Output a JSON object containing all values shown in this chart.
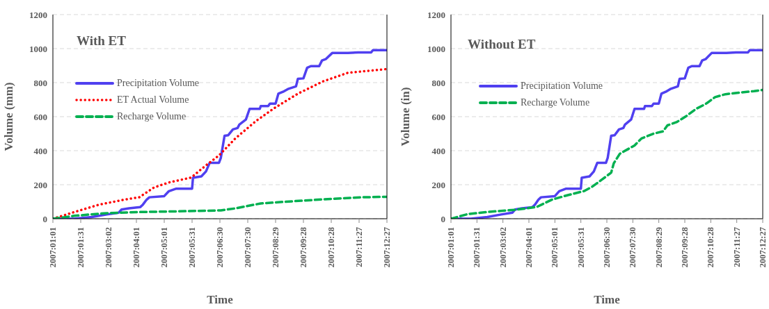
{
  "chart_data": [
    {
      "type": "line",
      "title": "With ET",
      "xlabel": "Time",
      "ylabel": "Volume (mm)",
      "xlim": [
        "2007-01-01",
        "2007-12-27"
      ],
      "xticks": [
        {
          "value": "2007-01-01",
          "label": "2007:01:01"
        },
        {
          "value": "2007-01-31",
          "label": "2007:01:31"
        },
        {
          "value": "2007-03-02",
          "label": "2007:03:02"
        },
        {
          "value": "2007-04-01",
          "label": "2007:04:01"
        },
        {
          "value": "2007-05-01",
          "label": "2007:05:01"
        },
        {
          "value": "2007-05-31",
          "label": "2007:05:31"
        },
        {
          "value": "2007-06-30",
          "label": "2007:06:30"
        },
        {
          "value": "2007-07-30",
          "label": "2007:07:30"
        },
        {
          "value": "2007-08-29",
          "label": "2007:08:29"
        },
        {
          "value": "2007-09-28",
          "label": "2007:09:28"
        },
        {
          "value": "2007-10-28",
          "label": "2007:10:28"
        },
        {
          "value": "2007-11-27",
          "label": "2007:11:27"
        },
        {
          "value": "2007-12-27",
          "label": "2007:12:27"
        }
      ],
      "ylim": [
        0,
        1200
      ],
      "yticks": [
        0,
        200,
        400,
        600,
        800,
        1000,
        1200
      ],
      "grid": "y",
      "legend": "top left",
      "marker": "none",
      "series": [
        {
          "name": "Precipitation Volume",
          "color": "#5040f0",
          "line_style": "solid",
          "x": [
            "2007-01-01",
            "2007-01-24",
            "2007-02-12",
            "2007-02-28",
            "2007-03-13",
            "2007-03-16",
            "2007-03-24",
            "2007-04-05",
            "2007-04-08",
            "2007-04-12",
            "2007-04-15",
            "2007-05-01",
            "2007-05-06",
            "2007-05-14",
            "2007-05-31",
            "2007-06-01",
            "2007-06-10",
            "2007-06-15",
            "2007-06-19",
            "2007-06-29",
            "2007-07-01",
            "2007-07-05",
            "2007-07-09",
            "2007-07-14",
            "2007-07-19",
            "2007-07-21",
            "2007-07-28",
            "2007-08-01",
            "2007-08-12",
            "2007-08-13",
            "2007-08-21",
            "2007-08-23",
            "2007-08-29",
            "2007-09-01",
            "2007-09-06",
            "2007-09-12",
            "2007-09-20",
            "2007-09-22",
            "2007-09-28",
            "2007-10-02",
            "2007-10-06",
            "2007-10-15",
            "2007-10-18",
            "2007-10-22",
            "2007-10-29",
            "2007-11-15",
            "2007-11-26",
            "2007-12-10",
            "2007-12-12",
            "2007-12-27"
          ],
          "values": [
            0,
            0,
            10,
            25,
            36,
            54,
            61,
            68,
            83,
            112,
            126,
            133,
            162,
            177,
            177,
            241,
            249,
            278,
            329,
            329,
            358,
            488,
            491,
            525,
            533,
            554,
            583,
            646,
            646,
            662,
            662,
            677,
            677,
            735,
            746,
            764,
            778,
            822,
            825,
            887,
            897,
            897,
            930,
            938,
            974,
            974,
            978,
            978,
            991,
            991
          ]
        },
        {
          "name": "ET Actual Volume",
          "color": "#ff0000",
          "line_style": "dotted",
          "x": [
            "2007-01-01",
            "2007-01-24",
            "2007-02-20",
            "2007-03-19",
            "2007-04-04",
            "2007-04-20",
            "2007-05-06",
            "2007-05-30",
            "2007-06-15",
            "2007-06-29",
            "2007-07-17",
            "2007-08-08",
            "2007-08-27",
            "2007-09-22",
            "2007-10-19",
            "2007-11-15",
            "2007-12-27"
          ],
          "values": [
            0,
            39,
            83,
            112,
            126,
            184,
            213,
            242,
            314,
            372,
            474,
            575,
            648,
            735,
            807,
            858,
            880
          ]
        },
        {
          "name": "Recharge Volume",
          "color": "#00b050",
          "line_style": "dashed",
          "x": [
            "2007-01-01",
            "2007-01-24",
            "2007-02-25",
            "2007-04-01",
            "2007-05-11",
            "2007-07-01",
            "2007-07-17",
            "2007-08-13",
            "2007-09-09",
            "2007-10-19",
            "2007-11-29",
            "2007-12-27"
          ],
          "values": [
            0,
            17,
            32,
            39,
            43,
            49,
            61,
            90,
            100,
            114,
            126,
            129
          ]
        }
      ]
    },
    {
      "type": "line",
      "title": "Without ET",
      "xlabel": "Time",
      "ylabel": "Volume (in)",
      "xlim": [
        "2007-01-01",
        "2007-12-27"
      ],
      "xticks": [
        {
          "value": "2007-01-01",
          "label": "2007:01:01"
        },
        {
          "value": "2007-01-31",
          "label": "2007:01:31"
        },
        {
          "value": "2007-03-02",
          "label": "2007:03:02"
        },
        {
          "value": "2007-04-01",
          "label": "2007:04:01"
        },
        {
          "value": "2007-05-01",
          "label": "2007:05:01"
        },
        {
          "value": "2007-05-31",
          "label": "2007:05:31"
        },
        {
          "value": "2007-06-30",
          "label": "2007:06:30"
        },
        {
          "value": "2007-07-30",
          "label": "2007:07:30"
        },
        {
          "value": "2007-08-29",
          "label": "2007:08:29"
        },
        {
          "value": "2007-09-28",
          "label": "2007:09:28"
        },
        {
          "value": "2007-10-28",
          "label": "2007:10:28"
        },
        {
          "value": "2007-11-27",
          "label": "2007:11:27"
        },
        {
          "value": "2007-12-27",
          "label": "2007:12:27"
        }
      ],
      "ylim": [
        0,
        1200
      ],
      "yticks": [
        0,
        200,
        400,
        600,
        800,
        1000,
        1200
      ],
      "grid": "y",
      "legend": "top left",
      "marker": "none",
      "series": [
        {
          "name": "Precipitation Volume",
          "color": "#5040f0",
          "line_style": "solid",
          "x": [
            "2007-01-01",
            "2007-01-24",
            "2007-02-12",
            "2007-02-28",
            "2007-03-13",
            "2007-03-16",
            "2007-03-24",
            "2007-04-05",
            "2007-04-08",
            "2007-04-12",
            "2007-04-15",
            "2007-05-01",
            "2007-05-06",
            "2007-05-14",
            "2007-05-31",
            "2007-06-01",
            "2007-06-10",
            "2007-06-15",
            "2007-06-19",
            "2007-06-29",
            "2007-07-01",
            "2007-07-05",
            "2007-07-09",
            "2007-07-14",
            "2007-07-19",
            "2007-07-21",
            "2007-07-28",
            "2007-08-01",
            "2007-08-12",
            "2007-08-13",
            "2007-08-21",
            "2007-08-23",
            "2007-08-29",
            "2007-09-01",
            "2007-09-06",
            "2007-09-12",
            "2007-09-20",
            "2007-09-22",
            "2007-09-28",
            "2007-10-02",
            "2007-10-06",
            "2007-10-15",
            "2007-10-18",
            "2007-10-22",
            "2007-10-29",
            "2007-11-15",
            "2007-11-26",
            "2007-12-10",
            "2007-12-12",
            "2007-12-27"
          ],
          "values": [
            0,
            0,
            10,
            25,
            36,
            54,
            61,
            68,
            83,
            112,
            126,
            133,
            162,
            177,
            177,
            241,
            249,
            278,
            329,
            329,
            358,
            488,
            491,
            525,
            533,
            554,
            583,
            646,
            646,
            662,
            662,
            677,
            677,
            735,
            746,
            764,
            778,
            822,
            825,
            887,
            897,
            897,
            930,
            938,
            974,
            974,
            978,
            978,
            991,
            991
          ]
        },
        {
          "name": "Recharge Volume",
          "color": "#00b050",
          "line_style": "dashed",
          "x": [
            "2007-01-01",
            "2007-01-21",
            "2007-02-17",
            "2007-03-17",
            "2007-04-10",
            "2007-04-27",
            "2007-05-16",
            "2007-06-04",
            "2007-06-13",
            "2007-06-24",
            "2007-07-05",
            "2007-07-08",
            "2007-07-15",
            "2007-08-01",
            "2007-08-09",
            "2007-08-23",
            "2007-09-03",
            "2007-09-08",
            "2007-09-19",
            "2007-09-30",
            "2007-10-11",
            "2007-10-22",
            "2007-11-02",
            "2007-11-14",
            "2007-12-03",
            "2007-12-17",
            "2007-12-27"
          ],
          "values": [
            0,
            28,
            42,
            53,
            69,
            111,
            139,
            163,
            188,
            229,
            271,
            326,
            382,
            431,
            472,
            500,
            514,
            549,
            569,
            604,
            646,
            674,
            715,
            732,
            743,
            750,
            757
          ]
        }
      ]
    }
  ]
}
